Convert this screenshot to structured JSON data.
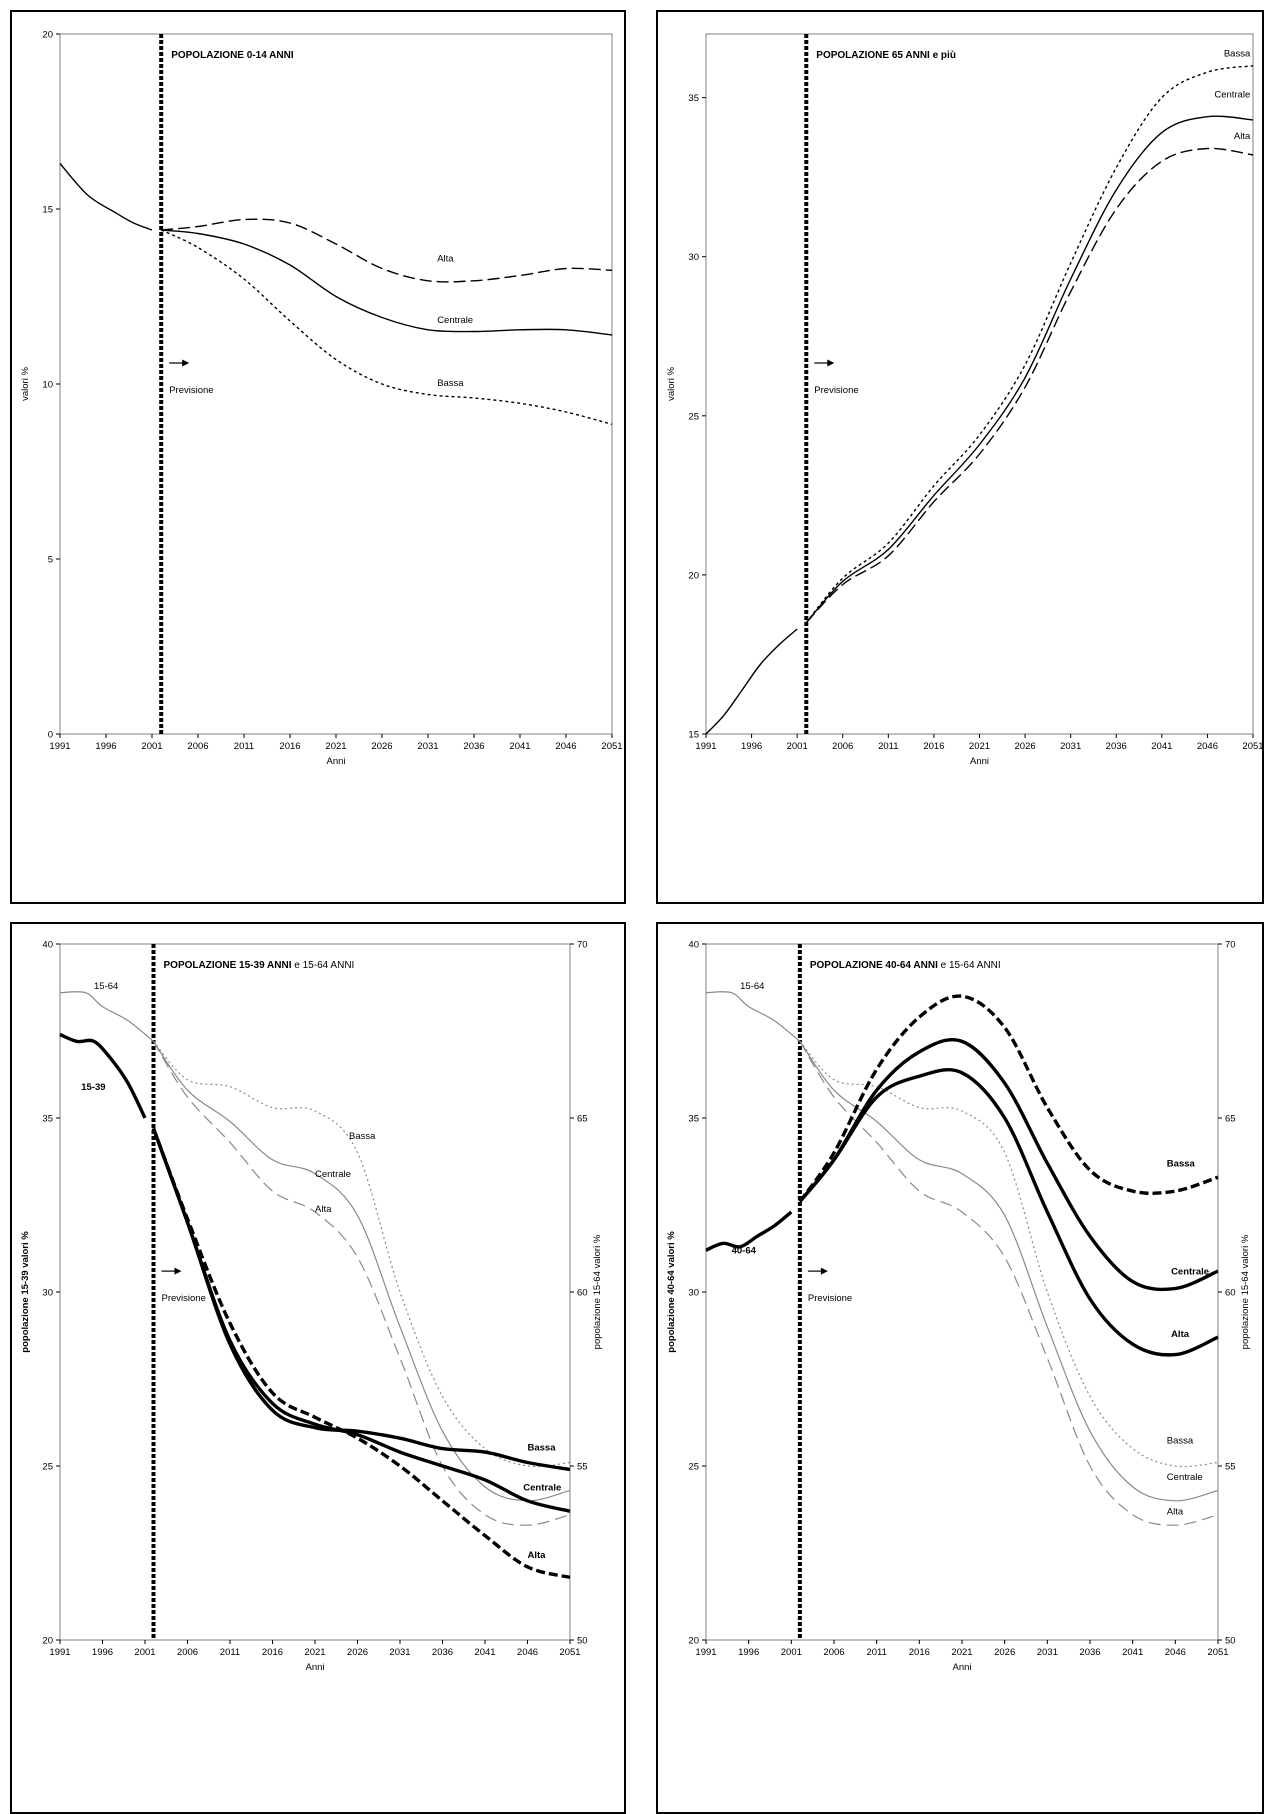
{
  "chart_data": [
    {
      "type": "line",
      "title": "POPOLAZIONE 0-14 ANNI",
      "xlabel": "Anni",
      "ylabel": "valori %",
      "xlim": [
        1991,
        2051
      ],
      "ylim": [
        0,
        20
      ],
      "xticks": [
        1991,
        1996,
        2001,
        2006,
        2011,
        2016,
        2021,
        2026,
        2031,
        2036,
        2041,
        2046,
        2051
      ],
      "yticks": [
        0,
        5,
        10,
        15,
        20
      ],
      "forecast_start": 2002,
      "annotation": "Previsione",
      "series": [
        {
          "name": "",
          "style": "solid",
          "x": [
            1991,
            1994,
            1997,
            1999,
            2001
          ],
          "y": [
            16.3,
            15.4,
            14.9,
            14.6,
            14.4
          ]
        },
        {
          "name": "Alta",
          "style": "dashed",
          "x": [
            2002,
            2006,
            2011,
            2016,
            2021,
            2026,
            2031,
            2036,
            2041,
            2046,
            2051
          ],
          "y": [
            14.4,
            14.5,
            14.7,
            14.6,
            14.0,
            13.3,
            12.95,
            12.95,
            13.1,
            13.3,
            13.25
          ]
        },
        {
          "name": "Centrale",
          "style": "solid",
          "x": [
            2002,
            2006,
            2011,
            2016,
            2021,
            2026,
            2031,
            2036,
            2041,
            2046,
            2051
          ],
          "y": [
            14.4,
            14.3,
            14.0,
            13.4,
            12.5,
            11.9,
            11.55,
            11.5,
            11.55,
            11.55,
            11.4
          ]
        },
        {
          "name": "Bassa",
          "style": "dotted",
          "x": [
            2002,
            2006,
            2011,
            2016,
            2021,
            2026,
            2031,
            2036,
            2041,
            2046,
            2051
          ],
          "y": [
            14.4,
            13.9,
            13.0,
            11.8,
            10.7,
            10.0,
            9.7,
            9.6,
            9.45,
            9.2,
            8.85
          ]
        }
      ],
      "series_labels": [
        {
          "text": "Alta",
          "x": 2032,
          "y": 13.5
        },
        {
          "text": "Centrale",
          "x": 2032,
          "y": 11.75
        },
        {
          "text": "Bassa",
          "x": 2032,
          "y": 9.95
        }
      ]
    },
    {
      "type": "line",
      "title": "POPOLAZIONE 65 ANNI e più",
      "xlabel": "Anni",
      "ylabel": "valori %",
      "xlim": [
        1991,
        2051
      ],
      "ylim": [
        15,
        37
      ],
      "xticks": [
        1991,
        1996,
        2001,
        2006,
        2011,
        2016,
        2021,
        2026,
        2031,
        2036,
        2041,
        2046,
        2051
      ],
      "yticks": [
        15,
        20,
        25,
        30,
        35
      ],
      "forecast_start": 2002,
      "annotation": "Previsione",
      "series": [
        {
          "name": "",
          "style": "solid",
          "x": [
            1991,
            1993,
            1995,
            1997,
            1999,
            2001
          ],
          "y": [
            15.0,
            15.6,
            16.4,
            17.2,
            17.8,
            18.3
          ]
        },
        {
          "name": "Bassa",
          "style": "dotted",
          "x": [
            2002,
            2006,
            2011,
            2016,
            2021,
            2026,
            2031,
            2036,
            2041,
            2046,
            2051
          ],
          "y": [
            18.5,
            19.9,
            21.0,
            22.8,
            24.4,
            26.6,
            29.8,
            32.8,
            35.0,
            35.8,
            36.0
          ]
        },
        {
          "name": "Centrale",
          "style": "solid",
          "x": [
            2002,
            2006,
            2011,
            2016,
            2021,
            2026,
            2031,
            2036,
            2041,
            2046,
            2051
          ],
          "y": [
            18.5,
            19.8,
            20.8,
            22.5,
            24.1,
            26.2,
            29.3,
            32.1,
            33.9,
            34.4,
            34.3
          ]
        },
        {
          "name": "Alta",
          "style": "dashed",
          "x": [
            2002,
            2006,
            2011,
            2016,
            2021,
            2026,
            2031,
            2036,
            2041,
            2046,
            2051
          ],
          "y": [
            18.5,
            19.7,
            20.6,
            22.3,
            23.8,
            25.9,
            28.9,
            31.5,
            33.0,
            33.4,
            33.2
          ]
        }
      ],
      "series_labels": [
        {
          "text": "Bassa",
          "x": 2050.7,
          "y": 36.3
        },
        {
          "text": "Centrale",
          "x": 2050.7,
          "y": 35.0
        },
        {
          "text": "Alta",
          "x": 2050.7,
          "y": 33.7
        }
      ]
    },
    {
      "type": "line",
      "title": "POPOLAZIONE 15-39 ANNI",
      "title_suffix": " e 15-64 ANNI",
      "xlabel": "Anni",
      "ylabel": "popolazione 15-39 valori %",
      "ylabel_right": "popolazione 15-64 valori %",
      "xlim": [
        1991,
        2051
      ],
      "ylim": [
        20,
        40
      ],
      "ylim_right": [
        50,
        70
      ],
      "xticks": [
        1991,
        1996,
        2001,
        2006,
        2011,
        2016,
        2021,
        2026,
        2031,
        2036,
        2041,
        2046,
        2051
      ],
      "yticks": [
        20,
        25,
        30,
        35,
        40
      ],
      "yticks_right": [
        50,
        55,
        60,
        65,
        70
      ],
      "forecast_start": 2002,
      "annotation": "Previsione",
      "series": [
        {
          "name": "15-64",
          "axis": "right",
          "style": "thin-gray",
          "x": [
            1991,
            1994,
            1996,
            1999,
            2002
          ],
          "y": [
            68.6,
            68.6,
            68.2,
            67.8,
            67.2
          ]
        },
        {
          "name": "Bassa",
          "axis": "right",
          "style": "thin-dotted",
          "x": [
            2002,
            2006,
            2011,
            2016,
            2021,
            2026,
            2031,
            2036,
            2041,
            2046,
            2051
          ],
          "y": [
            67.2,
            66.1,
            65.9,
            65.3,
            65.2,
            64.0,
            60.0,
            57.0,
            55.5,
            55.0,
            55.1
          ]
        },
        {
          "name": "Centrale",
          "axis": "right",
          "style": "thin-gray",
          "x": [
            2002,
            2006,
            2011,
            2016,
            2021,
            2026,
            2031,
            2036,
            2041,
            2046,
            2051
          ],
          "y": [
            67.2,
            65.8,
            64.9,
            63.8,
            63.4,
            62.2,
            59.0,
            56.0,
            54.4,
            54.0,
            54.3
          ]
        },
        {
          "name": "Alta",
          "axis": "right",
          "style": "thin-dashed",
          "x": [
            2002,
            2006,
            2011,
            2016,
            2021,
            2026,
            2031,
            2036,
            2041,
            2046,
            2051
          ],
          "y": [
            67.2,
            65.6,
            64.3,
            62.9,
            62.3,
            61.0,
            58.1,
            55.0,
            53.6,
            53.3,
            53.6
          ]
        },
        {
          "name": "15-39",
          "axis": "left",
          "style": "bold",
          "x": [
            1991,
            1993,
            1995,
            1997,
            1999,
            2001
          ],
          "y": [
            37.4,
            37.2,
            37.2,
            36.7,
            36.0,
            35.0
          ]
        },
        {
          "name": "Bassa",
          "axis": "left",
          "style": "bold",
          "x": [
            2002,
            2006,
            2011,
            2016,
            2021,
            2026,
            2031,
            2036,
            2041,
            2046,
            2051
          ],
          "y": [
            34.7,
            32.0,
            28.5,
            26.6,
            26.1,
            26.0,
            25.8,
            25.5,
            25.4,
            25.1,
            24.9
          ]
        },
        {
          "name": "Centrale",
          "axis": "left",
          "style": "bold",
          "x": [
            2002,
            2006,
            2011,
            2016,
            2021,
            2026,
            2031,
            2036,
            2041,
            2046,
            2051
          ],
          "y": [
            34.7,
            32.0,
            28.6,
            26.8,
            26.2,
            25.9,
            25.4,
            25.0,
            24.6,
            24.0,
            23.7
          ]
        },
        {
          "name": "Alta",
          "axis": "left",
          "style": "bold-dashed",
          "x": [
            2002,
            2006,
            2011,
            2016,
            2021,
            2026,
            2031,
            2036,
            2041,
            2046,
            2051
          ],
          "y": [
            34.7,
            32.1,
            29.1,
            27.1,
            26.4,
            25.8,
            25.0,
            24.0,
            23.0,
            22.1,
            21.8
          ]
        }
      ],
      "series_labels": [
        {
          "text": "15-64",
          "axis": "left",
          "x": 1995,
          "y": 38.7,
          "bold": false
        },
        {
          "text": "15-39",
          "axis": "left",
          "x": 1993.5,
          "y": 35.8,
          "bold": true
        },
        {
          "text": "Bassa",
          "axis": "left",
          "x": 2025,
          "y": 34.4,
          "bold": false
        },
        {
          "text": "Centrale",
          "axis": "left",
          "x": 2021,
          "y": 33.3,
          "bold": false
        },
        {
          "text": "Alta",
          "axis": "left",
          "x": 2021,
          "y": 32.3,
          "bold": false
        },
        {
          "text": "Bassa",
          "axis": "left",
          "x": 2046,
          "y": 25.45,
          "bold": true
        },
        {
          "text": "Centrale",
          "axis": "left",
          "x": 2045.5,
          "y": 24.3,
          "bold": true
        },
        {
          "text": "Alta",
          "axis": "left",
          "x": 2046,
          "y": 22.35,
          "bold": true
        }
      ]
    },
    {
      "type": "line",
      "title": "POPOLAZIONE 40-64 ANNI",
      "title_suffix": " e 15-64 ANNI",
      "xlabel": "Anni",
      "ylabel": "popolazione 40-64 valori %",
      "ylabel_right": "popolazione 15-64 valori %",
      "xlim": [
        1991,
        2051
      ],
      "ylim": [
        20,
        40
      ],
      "ylim_right": [
        50,
        70
      ],
      "xticks": [
        1991,
        1996,
        2001,
        2006,
        2011,
        2016,
        2021,
        2026,
        2031,
        2036,
        2041,
        2046,
        2051
      ],
      "yticks": [
        20,
        25,
        30,
        35,
        40
      ],
      "yticks_right": [
        50,
        55,
        60,
        65,
        70
      ],
      "forecast_start": 2002,
      "annotation": "Previsione",
      "series": [
        {
          "name": "15-64",
          "axis": "right",
          "style": "thin-gray",
          "x": [
            1991,
            1994,
            1996,
            1999,
            2002
          ],
          "y": [
            68.6,
            68.6,
            68.2,
            67.8,
            67.2
          ]
        },
        {
          "name": "Bassa",
          "axis": "right",
          "style": "thin-dotted",
          "x": [
            2002,
            2006,
            2011,
            2016,
            2021,
            2026,
            2031,
            2036,
            2041,
            2046,
            2051
          ],
          "y": [
            67.2,
            66.1,
            65.9,
            65.3,
            65.2,
            64.0,
            60.0,
            57.0,
            55.5,
            55.0,
            55.1
          ]
        },
        {
          "name": "Centrale",
          "axis": "right",
          "style": "thin-gray",
          "x": [
            2002,
            2006,
            2011,
            2016,
            2021,
            2026,
            2031,
            2036,
            2041,
            2046,
            2051
          ],
          "y": [
            67.2,
            65.8,
            64.9,
            63.8,
            63.4,
            62.2,
            59.0,
            56.0,
            54.4,
            54.0,
            54.3
          ]
        },
        {
          "name": "Alta",
          "axis": "right",
          "style": "thin-dashed",
          "x": [
            2002,
            2006,
            2011,
            2016,
            2021,
            2026,
            2031,
            2036,
            2041,
            2046,
            2051
          ],
          "y": [
            67.2,
            65.6,
            64.3,
            62.9,
            62.3,
            61.0,
            58.1,
            55.0,
            53.6,
            53.3,
            53.6
          ]
        },
        {
          "name": "40-64",
          "axis": "left",
          "style": "bold",
          "x": [
            1991,
            1993,
            1995,
            1997,
            1999,
            2001
          ],
          "y": [
            31.2,
            31.4,
            31.3,
            31.6,
            31.9,
            32.3
          ]
        },
        {
          "name": "Bassa",
          "axis": "left",
          "style": "bold-dashed",
          "x": [
            2002,
            2006,
            2011,
            2016,
            2021,
            2026,
            2031,
            2036,
            2041,
            2046,
            2051
          ],
          "y": [
            32.6,
            34.0,
            36.4,
            37.9,
            38.5,
            37.6,
            35.3,
            33.5,
            32.9,
            32.9,
            33.3
          ]
        },
        {
          "name": "Centrale",
          "axis": "left",
          "style": "bold",
          "x": [
            2002,
            2006,
            2011,
            2016,
            2021,
            2026,
            2031,
            2036,
            2041,
            2046,
            2051
          ],
          "y": [
            32.6,
            33.8,
            35.8,
            36.9,
            37.2,
            36.0,
            33.7,
            31.6,
            30.3,
            30.1,
            30.6
          ]
        },
        {
          "name": "Alta",
          "axis": "left",
          "style": "bold",
          "x": [
            2002,
            2006,
            2011,
            2016,
            2021,
            2026,
            2031,
            2036,
            2041,
            2046,
            2051
          ],
          "y": [
            32.6,
            33.8,
            35.6,
            36.2,
            36.3,
            35.0,
            32.3,
            29.8,
            28.5,
            28.2,
            28.7
          ]
        }
      ],
      "series_labels": [
        {
          "text": "15-64",
          "axis": "left",
          "x": 1995,
          "y": 38.7,
          "bold": false
        },
        {
          "text": "40-64",
          "axis": "left",
          "x": 1994,
          "y": 31.1,
          "bold": true
        },
        {
          "text": "Bassa",
          "axis": "left",
          "x": 2045,
          "y": 33.6,
          "bold": true
        },
        {
          "text": "Centrale",
          "axis": "left",
          "x": 2045.5,
          "y": 30.5,
          "bold": true
        },
        {
          "text": "Alta",
          "axis": "left",
          "x": 2045.5,
          "y": 28.7,
          "bold": true
        },
        {
          "text": "Bassa",
          "axis": "left",
          "x": 2045,
          "y": 25.65,
          "bold": false
        },
        {
          "text": "Centrale",
          "axis": "left",
          "x": 2045,
          "y": 24.6,
          "bold": false
        },
        {
          "text": "Alta",
          "axis": "left",
          "x": 2045,
          "y": 23.6,
          "bold": false
        }
      ]
    }
  ]
}
